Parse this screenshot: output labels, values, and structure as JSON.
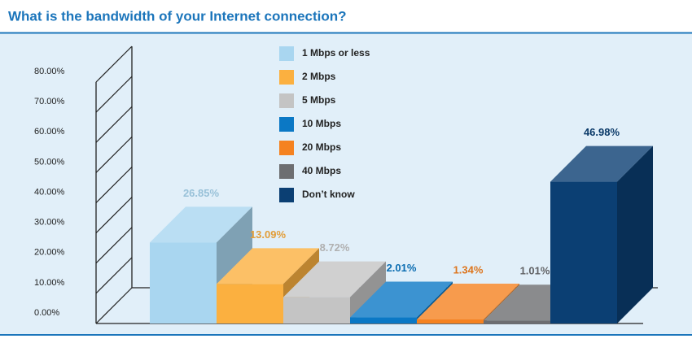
{
  "chart_data": {
    "type": "bar3d",
    "title": "What is the bandwidth of your Internet connection?",
    "categories": [
      "1 Mbps or less",
      "2 Mbps",
      "5 Mbps",
      "10 Mbps",
      "20 Mbps",
      "40 Mbps",
      "Don’t know"
    ],
    "values": [
      26.85,
      13.09,
      8.72,
      2.01,
      1.34,
      1.01,
      46.98
    ],
    "value_labels": [
      "26.85%",
      "13.09%",
      "8.72%",
      "2.01%",
      "1.34%",
      "1.01%",
      "46.98%"
    ],
    "colors": [
      "#a9d6f0",
      "#fbb040",
      "#c4c4c4",
      "#0b78c5",
      "#f58220",
      "#6d6e71",
      "#0b3f73"
    ],
    "ylim": [
      0,
      80
    ],
    "yticks": [
      {
        "value": 0,
        "label": "0.00%"
      },
      {
        "value": 10,
        "label": "10.00%"
      },
      {
        "value": 20,
        "label": "20.00%"
      },
      {
        "value": 30,
        "label": "30.00%"
      },
      {
        "value": 40,
        "label": "40.00%"
      },
      {
        "value": 50,
        "label": "50.00%"
      },
      {
        "value": 60,
        "label": "60.00%"
      },
      {
        "value": 70,
        "label": "70.00%"
      },
      {
        "value": 80,
        "label": "80.00%"
      }
    ],
    "legend": "top-center"
  }
}
